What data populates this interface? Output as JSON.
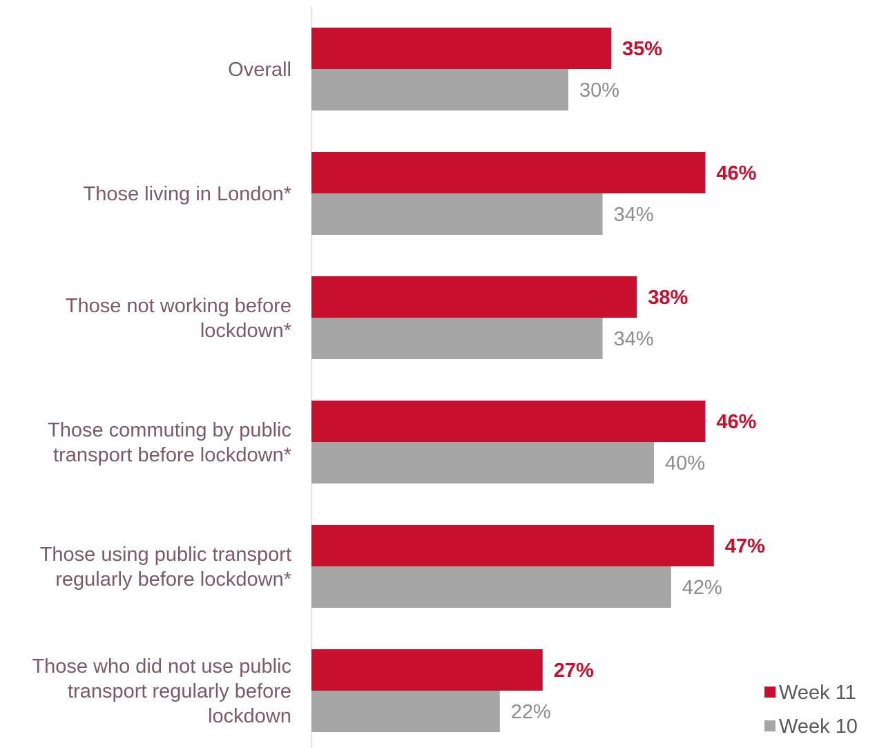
{
  "chart_data": {
    "type": "bar",
    "orientation": "horizontal",
    "categories": [
      [
        "Overall"
      ],
      [
        "Those living in London*"
      ],
      [
        "Those not working before",
        "lockdown*"
      ],
      [
        "Those commuting by public",
        "transport before lockdown*"
      ],
      [
        "Those using public transport",
        "regularly before lockdown*"
      ],
      [
        "Those who did not use public",
        "transport regularly before",
        "lockdown"
      ]
    ],
    "series": [
      {
        "name": "Week 11",
        "values": [
          35,
          46,
          38,
          46,
          47,
          27
        ],
        "labels": [
          "35%",
          "46%",
          "38%",
          "46%",
          "47%",
          "27%"
        ],
        "color": "#c8102e",
        "label_color": "#c8102e",
        "label_weight": "bold"
      },
      {
        "name": "Week 10",
        "values": [
          30,
          34,
          34,
          40,
          42,
          22
        ],
        "labels": [
          "30%",
          "34%",
          "34%",
          "40%",
          "42%",
          "22%"
        ],
        "color": "#a6a6a6",
        "label_color": "#8c8c8c",
        "label_weight": "normal"
      }
    ],
    "category_label_color": "#7a5c68",
    "axis_color": "#d9d9d9",
    "xlim": [
      0,
      100
    ],
    "grid": false,
    "legend": {
      "position": "bottom-right"
    },
    "title": "",
    "xlabel": "",
    "ylabel": ""
  }
}
